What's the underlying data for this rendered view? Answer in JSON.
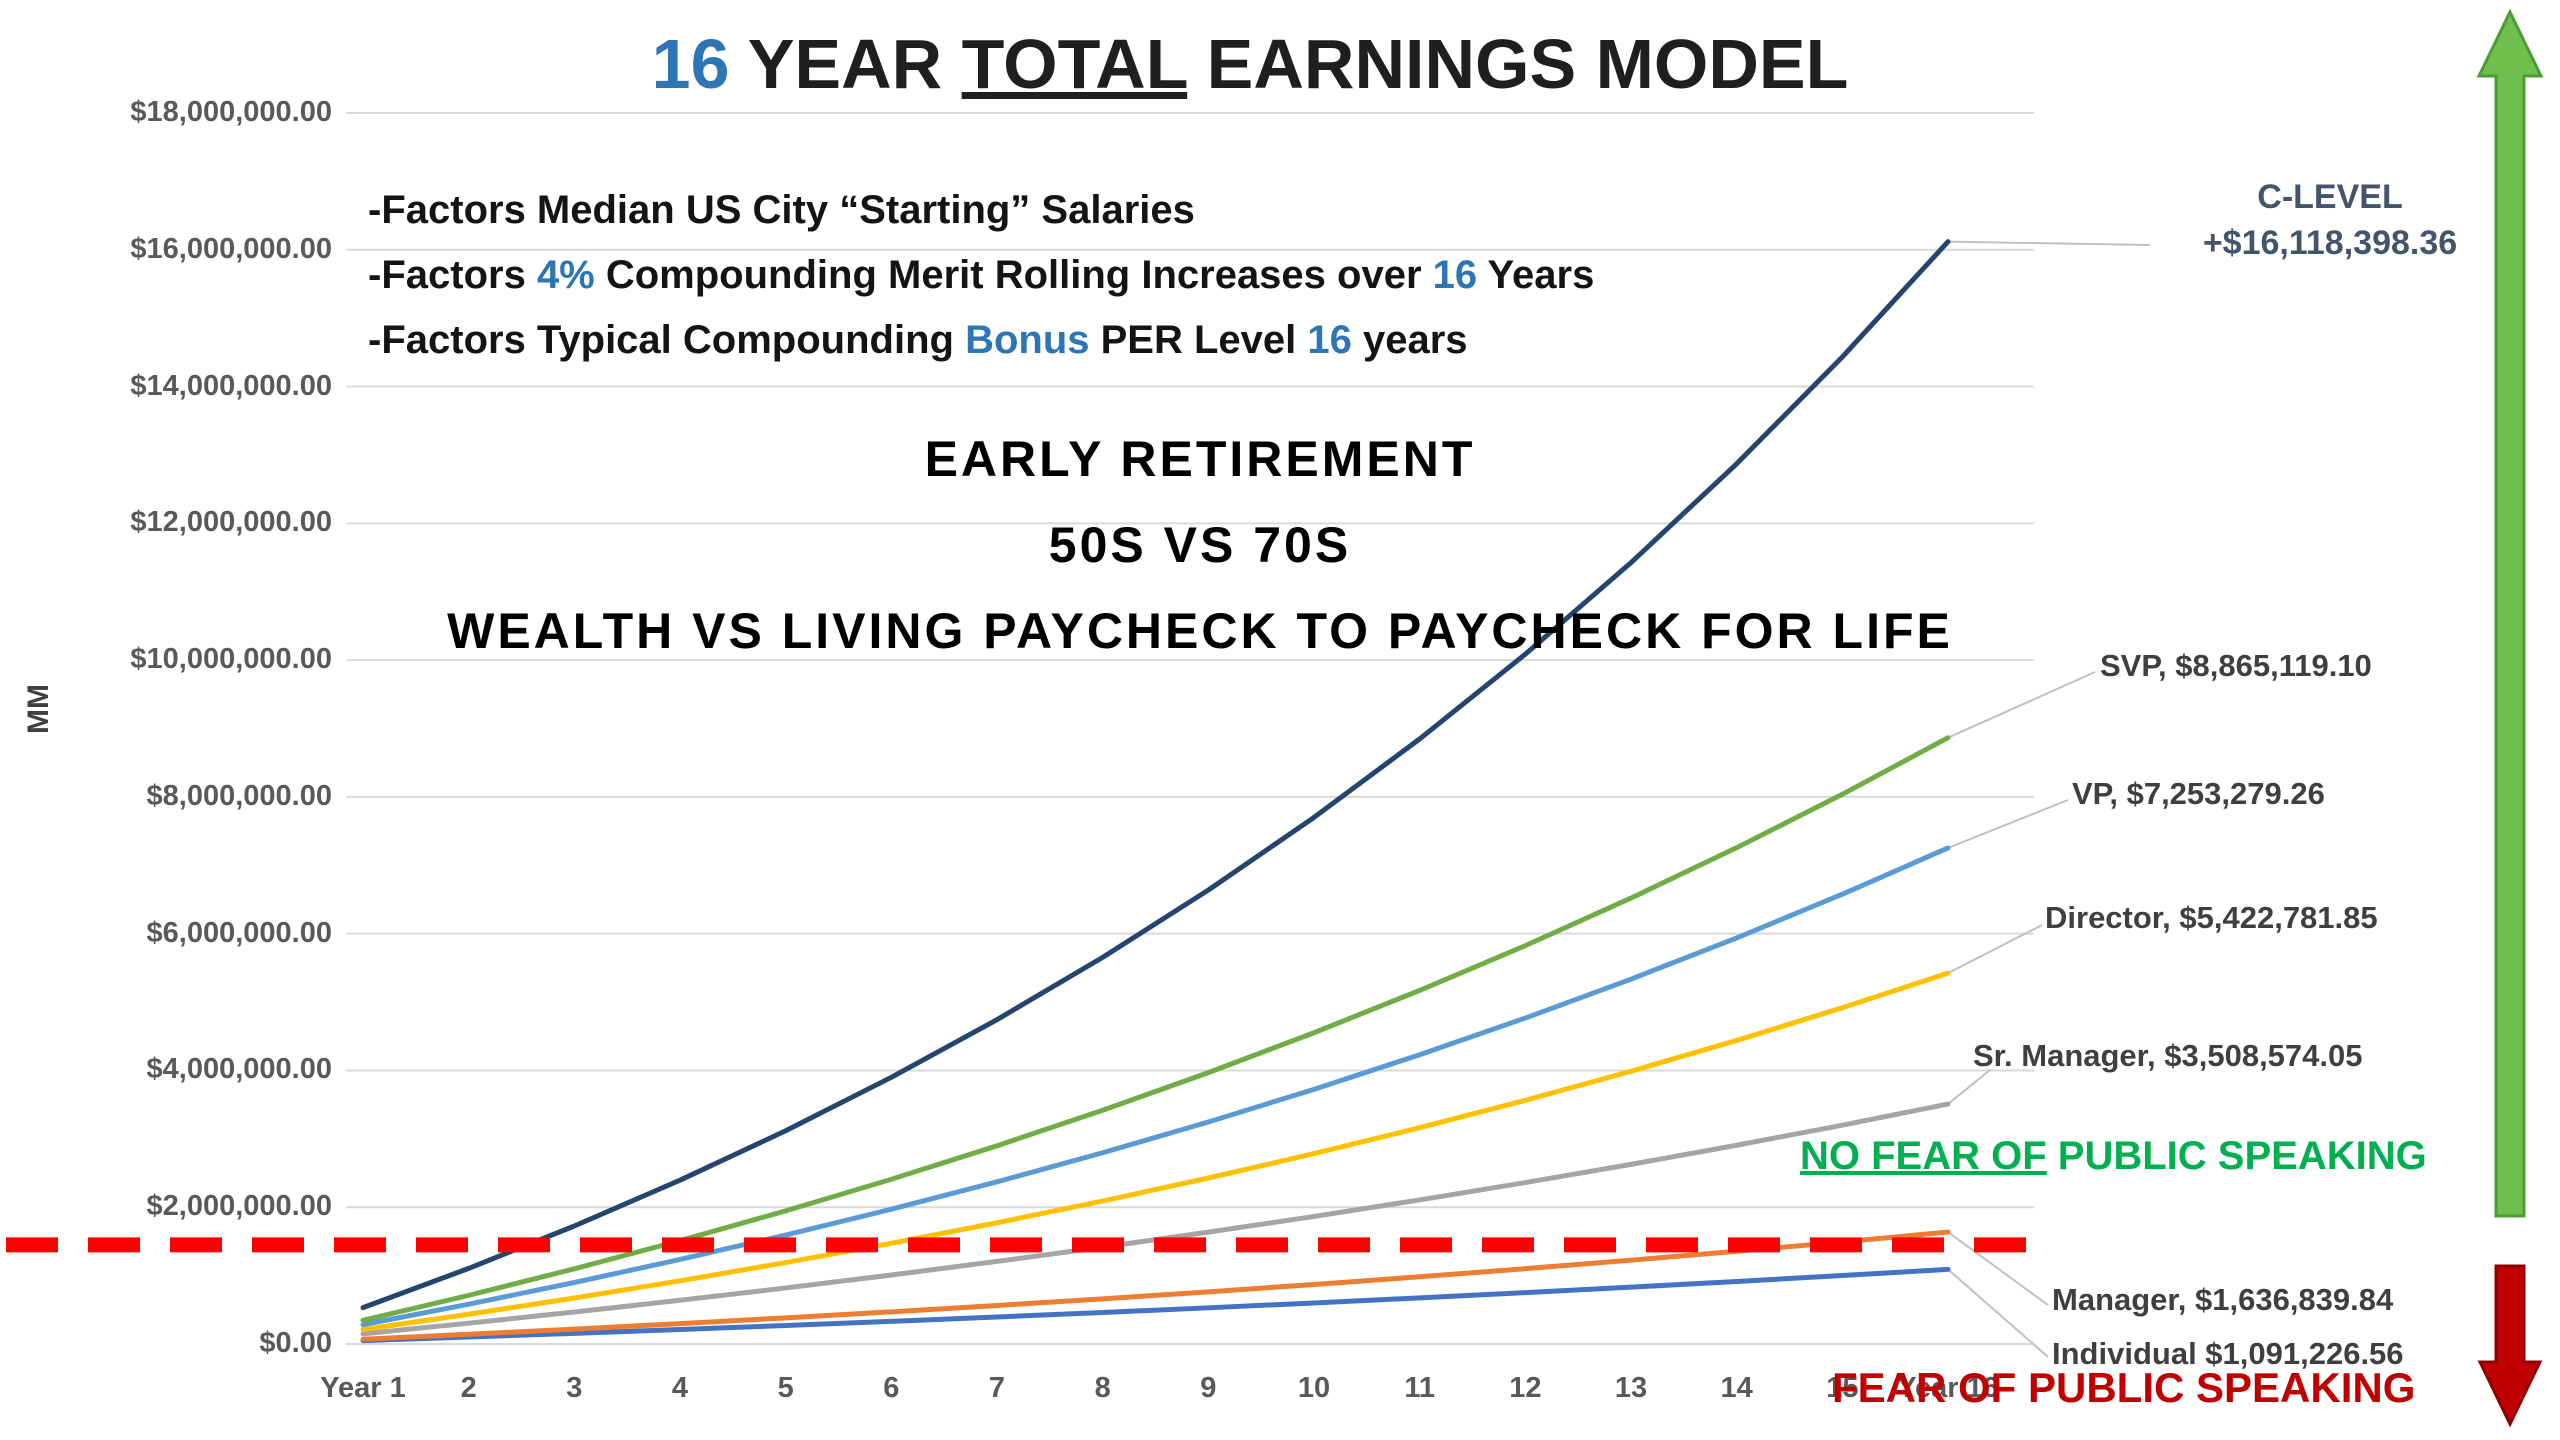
{
  "colors": {
    "accent_blue": "#2e75b6",
    "green": "#00b050",
    "red": "#ff0000",
    "dark_red": "#c00000"
  },
  "title": {
    "text": "16 YEAR TOTAL EARNINGS MODEL",
    "segments": [
      {
        "t": "16",
        "c": "#2e75b6"
      },
      {
        "t": " YEAR "
      },
      {
        "t": "TOTAL",
        "u": true
      },
      {
        "t": " EARNINGS MODEL"
      }
    ]
  },
  "factors": [
    [
      {
        "t": "-Factors Median US City “Starting” Salaries"
      }
    ],
    [
      {
        "t": "-Factors "
      },
      {
        "t": "4%",
        "c": "#2e75b6"
      },
      {
        "t": " Compounding Merit Rolling Increases over "
      },
      {
        "t": "16",
        "c": "#2e75b6"
      },
      {
        "t": " Years"
      }
    ],
    [
      {
        "t": "-Factors Typical Compounding "
      },
      {
        "t": "Bonus",
        "c": "#2e75b6"
      },
      {
        "t": " PER Level "
      },
      {
        "t": "16",
        "c": "#2e75b6"
      },
      {
        "t": " years"
      }
    ]
  ],
  "caption": [
    "EARLY RETIREMENT",
    "50S VS 70S",
    "WEALTH VS LIVING PAYCHECK TO PAYCHECK FOR LIFE"
  ],
  "labels": {
    "c_level_line1": "C-LEVEL",
    "c_level_line2": "+$16,118,398.36",
    "svp": "SVP, $8,865,119.10",
    "vp": "VP, $7,253,279.26",
    "director": "Director, $5,422,781.85",
    "sr_manager": "Sr. Manager, $3,508,574.05",
    "manager": "Manager, $1,636,839.84",
    "individual": "Individual $1,091,226.56"
  },
  "annotations": {
    "no_fear_segments": [
      {
        "t": "NO FEAR OF",
        "u": true
      },
      {
        "t": " PUBLIC SPEAKING"
      }
    ],
    "fear": "FEAR OF PUBLIC SPEAKING"
  },
  "axis": {
    "y_title": "MM"
  },
  "chart_data": {
    "type": "line",
    "title": "16 YEAR TOTAL EARNINGS MODEL",
    "ylabel": "MM",
    "ylim": [
      0,
      18000000
    ],
    "y_tick_interval": 2000000,
    "grid": true,
    "y_tick_labels": [
      "$0.00",
      "$2,000,000.00",
      "$4,000,000.00",
      "$6,000,000.00",
      "$8,000,000.00",
      "$10,000,000.00",
      "$12,000,000.00",
      "$14,000,000.00",
      "$16,000,000.00",
      "$18,000,000.00"
    ],
    "x_tick_labels": [
      "Year 1",
      "2",
      "3",
      "4",
      "5",
      "6",
      "7",
      "8",
      "9",
      "10",
      "11",
      "12",
      "13",
      "14",
      "15",
      "Year 16"
    ],
    "series": [
      {
        "name": "C-LEVEL",
        "final": 16118398.36,
        "final_label": "C-LEVEL +$16,118,398.36",
        "color": "#24456e",
        "values": [
          531528,
          1105578,
          1725473,
          2395198,
          3118076,
          3899422,
          4742558,
          5653465,
          6637456,
          7699848,
          8847284,
          10087072,
          11425240,
          12871028,
          14432392,
          16118398
        ]
      },
      {
        "name": "SVP",
        "final": 8865119.1,
        "final_label": "SVP, $8,865,119.10",
        "color": "#70ad47",
        "values": [
          345740,
          710983,
          1099275,
          1510616,
          1946780,
          2408653,
          2898007,
          3417503,
          3968027,
          4551352,
          5170137,
          5825270,
          6520295,
          7257386,
          8038004,
          8865119
        ]
      },
      {
        "name": "VP",
        "final": 7253279.26,
        "final_label": "VP, $7,253,279.26",
        "color": "#5b9bd5",
        "values": [
          282878,
          581713,
          899407,
          1235959,
          1592820,
          1970716,
          2371097,
          2796139,
          3246568,
          3723834,
          4230112,
          4766130,
          5334787,
          5937534,
          6576548,
          7253279
        ]
      },
      {
        "name": "Director",
        "final": 5422781.85,
        "final_label": "Director, $5,422,781.85",
        "color": "#ffc000",
        "values": [
          211488,
          434907,
          672425,
          924042,
          1190843,
          1473370,
          1772707,
          2090482,
          2427237,
          2784056,
          3162566,
          3563310,
          3988456,
          4439089,
          4916836,
          5422782
        ]
      },
      {
        "name": "Sr. Manager",
        "final": 3508574.05,
        "final_label": "Sr. Manager, $3,508,574.05",
        "color": "#a5a5a5",
        "values": [
          148413,
          304193,
          467342,
          639262,
          819603,
          1008715,
          1207651,
          1416061,
          1635346,
          1865509,
          2106899,
          2361020,
          2626870,
          2906503,
          3200170,
          3508574
        ]
      },
      {
        "name": "Manager",
        "final": 1636839.84,
        "final_label": "Manager, $1,636,839.84",
        "color": "#ed7d31",
        "values": [
          69238,
          141914,
          218027,
          298232,
          382366,
          470591,
          563400,
          660629,
          762933,
          870308,
          982922,
          1101430,
          1225502,
          1355958,
          1492960,
          1636840
        ]
      },
      {
        "name": "Individual",
        "final": 1091226.56,
        "final_label": "Individual $1,091,226.56",
        "color": "#4472c4",
        "values": [
          49978,
          102030,
          156155,
          212353,
          270843,
          331644,
          394915,
          460716,
          529136,
          600284,
          674378,
          751310,
          831406,
          914666,
          1001091,
          1091227
        ]
      }
    ],
    "threshold": {
      "value": 1450000,
      "color": "#ff0000",
      "style": "dashed",
      "label_above": "NO FEAR OF PUBLIC SPEAKING",
      "label_below": "FEAR OF PUBLIC SPEAKING"
    }
  }
}
